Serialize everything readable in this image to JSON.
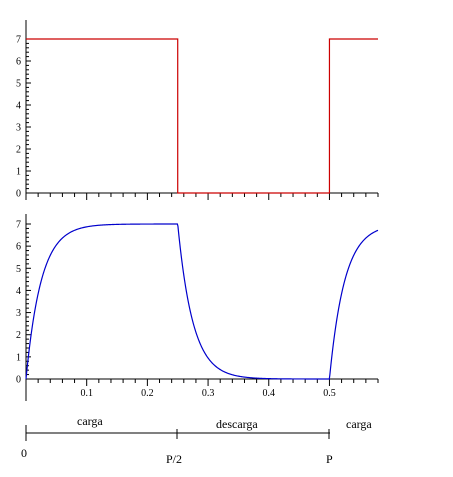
{
  "chart_data": [
    {
      "type": "line",
      "x_range": [
        0,
        0.58
      ],
      "ylim": [
        0,
        7
      ],
      "y_ticks": [
        "0",
        "1",
        "2",
        "3",
        "4",
        "5",
        "6",
        "7"
      ],
      "series": [
        {
          "color": "#cc0000",
          "shape": "square-wave",
          "points": [
            [
              0,
              7
            ],
            [
              0.25,
              7
            ],
            [
              0.25,
              0
            ],
            [
              0.5,
              0
            ],
            [
              0.5,
              7
            ],
            [
              0.58,
              7
            ]
          ]
        }
      ]
    },
    {
      "type": "line",
      "x_range": [
        0,
        0.58
      ],
      "ylim": [
        0,
        7
      ],
      "y_ticks": [
        "0",
        "1",
        "2",
        "3",
        "4",
        "5",
        "6",
        "7"
      ],
      "x_ticks": [
        {
          "value": 0.1,
          "label": "0.1"
        },
        {
          "value": 0.2,
          "label": "0.2"
        },
        {
          "value": 0.3,
          "label": "0.3"
        },
        {
          "value": 0.4,
          "label": "0.4"
        },
        {
          "value": 0.5,
          "label": "0.5"
        }
      ],
      "series": [
        {
          "color": "#0000cc",
          "shape": "rc-charge-discharge",
          "amplitude": 7,
          "period": 0.5,
          "time_constant": 0.025
        }
      ]
    }
  ],
  "timeline": {
    "labels": {
      "charge_1": "carga",
      "discharge": "descarga",
      "charge_2": "carga"
    },
    "markers": [
      "0",
      "P/2",
      "P"
    ]
  }
}
